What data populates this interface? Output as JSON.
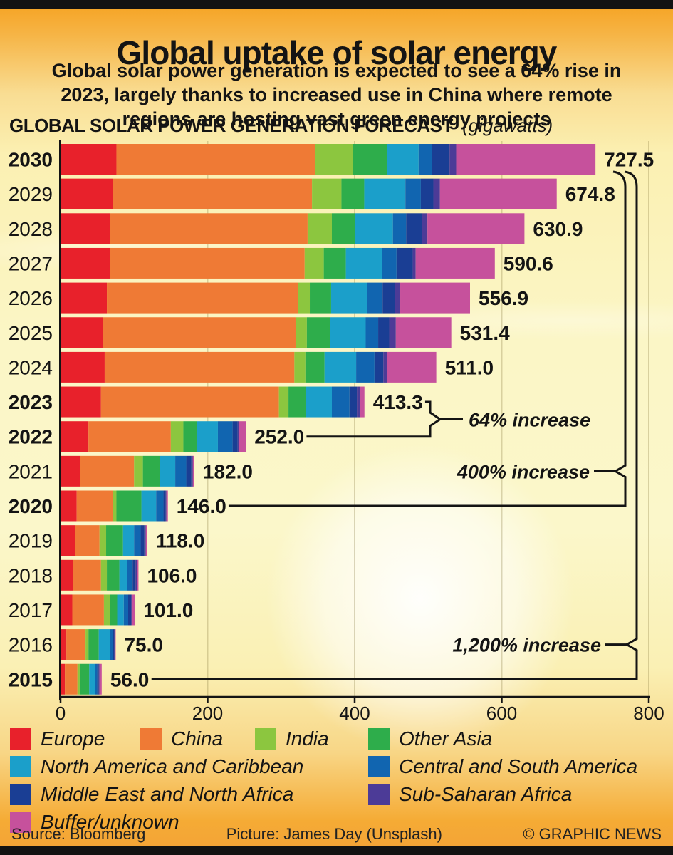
{
  "page": {
    "title": "Global uptake of solar energy",
    "subtitle_lines": [
      "Global solar power generation is expected to see a 64% rise in",
      "2023, largely thanks to increased use in China where remote",
      "regions are hosting vast green energy projects"
    ],
    "chart_heading": "GLOBAL SOLAR POWER GENERATION FORECAST",
    "chart_heading_unit": "(gigawatts)",
    "footer": {
      "source": "Source: Bloomberg",
      "picture": "Picture: James Day (Unsplash)",
      "credit": "© GRAPHIC NEWS"
    }
  },
  "chart_data": {
    "type": "bar",
    "orientation": "horizontal",
    "stacked": true,
    "title": "GLOBAL SOLAR POWER GENERATION FORECAST",
    "unit": "gigawatts",
    "categories": [
      "2030",
      "2029",
      "2028",
      "2027",
      "2026",
      "2025",
      "2024",
      "2023",
      "2022",
      "2021",
      "2020",
      "2019",
      "2018",
      "2017",
      "2016",
      "2015"
    ],
    "bold_categories": [
      "2030",
      "2023",
      "2022",
      "2020",
      "2015"
    ],
    "totals": [
      727.5,
      674.8,
      630.9,
      590.6,
      556.9,
      531.4,
      511.0,
      413.3,
      252.0,
      182.0,
      146.0,
      118.0,
      106.0,
      101.0,
      75.0,
      56.0
    ],
    "total_labels": [
      "727.5",
      "674.8",
      "630.9",
      "590.6",
      "556.9",
      "531.4",
      "511.0",
      "413.3",
      "252.0",
      "182.0",
      "146.0",
      "118.0",
      "106.0",
      "101.0",
      "75.0",
      "56.0"
    ],
    "series": [
      {
        "name": "Europe",
        "color": "#E8212B",
        "values": [
          76,
          71,
          67,
          67,
          63,
          58,
          60,
          55,
          38,
          27,
          22,
          20,
          17,
          16,
          8,
          6
        ]
      },
      {
        "name": "China",
        "color": "#EF7A35",
        "values": [
          270,
          271,
          269,
          265,
          260,
          262,
          258,
          242,
          112,
          73,
          49,
          33,
          38,
          43,
          26,
          17
        ]
      },
      {
        "name": "India",
        "color": "#8CC63F",
        "values": [
          52,
          40,
          33,
          26,
          16,
          15,
          15,
          13,
          17,
          12,
          5,
          9,
          8,
          8,
          4,
          3
        ]
      },
      {
        "name": "Other Asia",
        "color": "#2EAD4B",
        "values": [
          46,
          31,
          31,
          30,
          29,
          32,
          26,
          24,
          18,
          23,
          34,
          23,
          17,
          10,
          14,
          13
        ]
      },
      {
        "name": "North America and Caribbean",
        "color": "#1B9FCA",
        "values": [
          43,
          56,
          52,
          49,
          49,
          48,
          43,
          35,
          29,
          21,
          20,
          15,
          11,
          9,
          15,
          8
        ]
      },
      {
        "name": "Central and South America",
        "color": "#1165B0",
        "values": [
          18,
          21,
          18,
          20,
          21,
          17,
          25,
          24,
          20,
          15,
          10,
          9,
          7,
          6,
          4,
          3
        ]
      },
      {
        "name": "Middle East and North Africa",
        "color": "#1A3E94",
        "values": [
          24,
          17,
          22,
          22,
          17,
          15,
          12,
          10,
          7,
          7,
          3,
          5,
          4,
          4,
          2,
          2
        ]
      },
      {
        "name": "Sub-Saharan Africa",
        "color": "#4C3B97",
        "values": [
          9,
          9,
          7,
          4,
          7,
          9,
          5,
          4,
          2,
          2,
          1,
          2,
          2,
          1,
          1,
          1
        ]
      },
      {
        "name": "Buffer/unknown",
        "color": "#C6519C",
        "values": [
          189.5,
          158.8,
          131.9,
          107.6,
          94.9,
          75.4,
          67,
          6.3,
          9,
          2,
          2,
          2,
          2,
          4,
          1,
          3
        ]
      }
    ],
    "x_axis": {
      "ticks": [
        0,
        200,
        400,
        600,
        800
      ],
      "max": 800,
      "grid": true
    },
    "annotations": [
      {
        "label": "64% increase",
        "from_category": "2023",
        "to_category": "2022",
        "style": "brace-right"
      },
      {
        "label": "400% increase",
        "from_category": "2030",
        "to_category": "2020",
        "style": "brace-left"
      },
      {
        "label": "1,200% increase",
        "from_category": "2030",
        "to_category": "2015",
        "style": "brace-left"
      }
    ],
    "legend_position": "bottom"
  }
}
